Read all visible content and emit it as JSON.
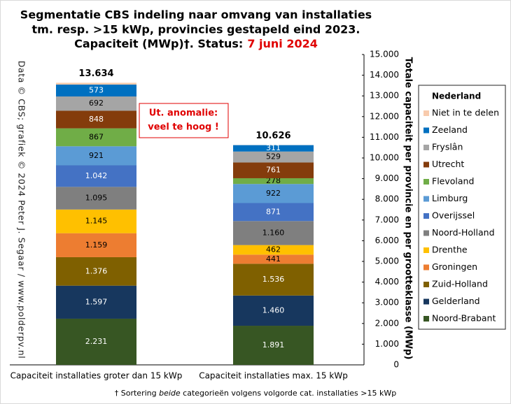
{
  "chart_data": {
    "type": "stacked_bar",
    "title": [
      "Segmentatie CBS indeling naar omvang van installaties",
      "tm. resp. >15 kWp, provincies gestapeld eind 2023.",
      "Capaciteit (MWp)†. Status:"
    ],
    "status_date": "7 juni 2024",
    "categories": [
      "Capaciteit installaties groter dan 15 kWp",
      "Capaciteit installaties max. 15 kWp"
    ],
    "series": [
      {
        "name": "Noord-Brabant",
        "color": "#375623",
        "values": [
          2231,
          1891
        ],
        "value_labels": [
          "2.231",
          "1.891"
        ]
      },
      {
        "name": "Gelderland",
        "color": "#17375e",
        "values": [
          1597,
          1460
        ],
        "value_labels": [
          "1.597",
          "1.460"
        ]
      },
      {
        "name": "Zuid-Holland",
        "color": "#7f6000",
        "values": [
          1376,
          1536
        ],
        "value_labels": [
          "1.376",
          "1.536"
        ]
      },
      {
        "name": "Groningen",
        "color": "#ed7d31",
        "values": [
          1159,
          441
        ],
        "value_labels": [
          "1.159",
          "441"
        ]
      },
      {
        "name": "Drenthe",
        "color": "#ffc000",
        "values": [
          1145,
          462
        ],
        "value_labels": [
          "1.145",
          "462"
        ]
      },
      {
        "name": "Noord-Holland",
        "color": "#7f7f7f",
        "values": [
          1095,
          1160
        ],
        "value_labels": [
          "1.095",
          "1.160"
        ]
      },
      {
        "name": "Overijssel",
        "color": "#4472c4",
        "values": [
          1042,
          871
        ],
        "value_labels": [
          "1.042",
          "871"
        ]
      },
      {
        "name": "Limburg",
        "color": "#5b9bd5",
        "values": [
          921,
          922
        ],
        "value_labels": [
          "921",
          "922"
        ]
      },
      {
        "name": "Flevoland",
        "color": "#70ad47",
        "values": [
          867,
          278
        ],
        "value_labels": [
          "867",
          "278"
        ]
      },
      {
        "name": "Utrecht",
        "color": "#843c0c",
        "values": [
          848,
          761
        ],
        "value_labels": [
          "848",
          "761"
        ]
      },
      {
        "name": "Fryslân",
        "color": "#a5a5a5",
        "values": [
          692,
          529
        ],
        "value_labels": [
          "692",
          "529"
        ]
      },
      {
        "name": "Zeeland",
        "color": "#0070c0",
        "values": [
          573,
          311
        ],
        "value_labels": [
          "573",
          "311"
        ]
      },
      {
        "name": "Niet in te delen",
        "color": "#f8cbad",
        "values": [
          88,
          4
        ]
      }
    ],
    "totals": [
      {
        "value": 13634,
        "label": "13.634"
      },
      {
        "value": 10626,
        "label": "10.626"
      }
    ],
    "ylim": [
      0,
      15000
    ],
    "yticks": [
      0,
      {
        "value": 1000,
        "label": "1.000"
      },
      {
        "value": 2000,
        "label": "2.000"
      },
      {
        "value": 3000,
        "label": "3.000"
      },
      {
        "value": 4000,
        "label": "4.000"
      },
      {
        "value": 5000,
        "label": "5.000"
      },
      {
        "value": 6000,
        "label": "6.000"
      },
      {
        "value": 7000,
        "label": "7.000"
      },
      {
        "value": 8000,
        "label": "8.000"
      },
      {
        "value": 9000,
        "label": "9.000"
      },
      {
        "value": 10000,
        "label": "10.000"
      },
      {
        "value": 11000,
        "label": "11.000"
      },
      {
        "value": 12000,
        "label": "12.000"
      },
      {
        "value": 13000,
        "label": "13.000"
      },
      {
        "value": 14000,
        "label": "14.000"
      },
      {
        "value": 15000,
        "label": "15.000"
      }
    ],
    "y_axis_label": "Totale capaciteit per provincie en per grootteklasse (MWp)",
    "legend_title": "Nederland",
    "legend_position": "right",
    "annotation": [
      "Ut. anomalie:",
      "veel te hoog !"
    ],
    "source_note": "Data © CBS; grafiek © 2024 Peter J. Segaar / www.polderpv.nl",
    "footnote": [
      "† Sortering ",
      "beide",
      " categorieën volgens volgorde cat. installaties >15 kWp"
    ]
  }
}
